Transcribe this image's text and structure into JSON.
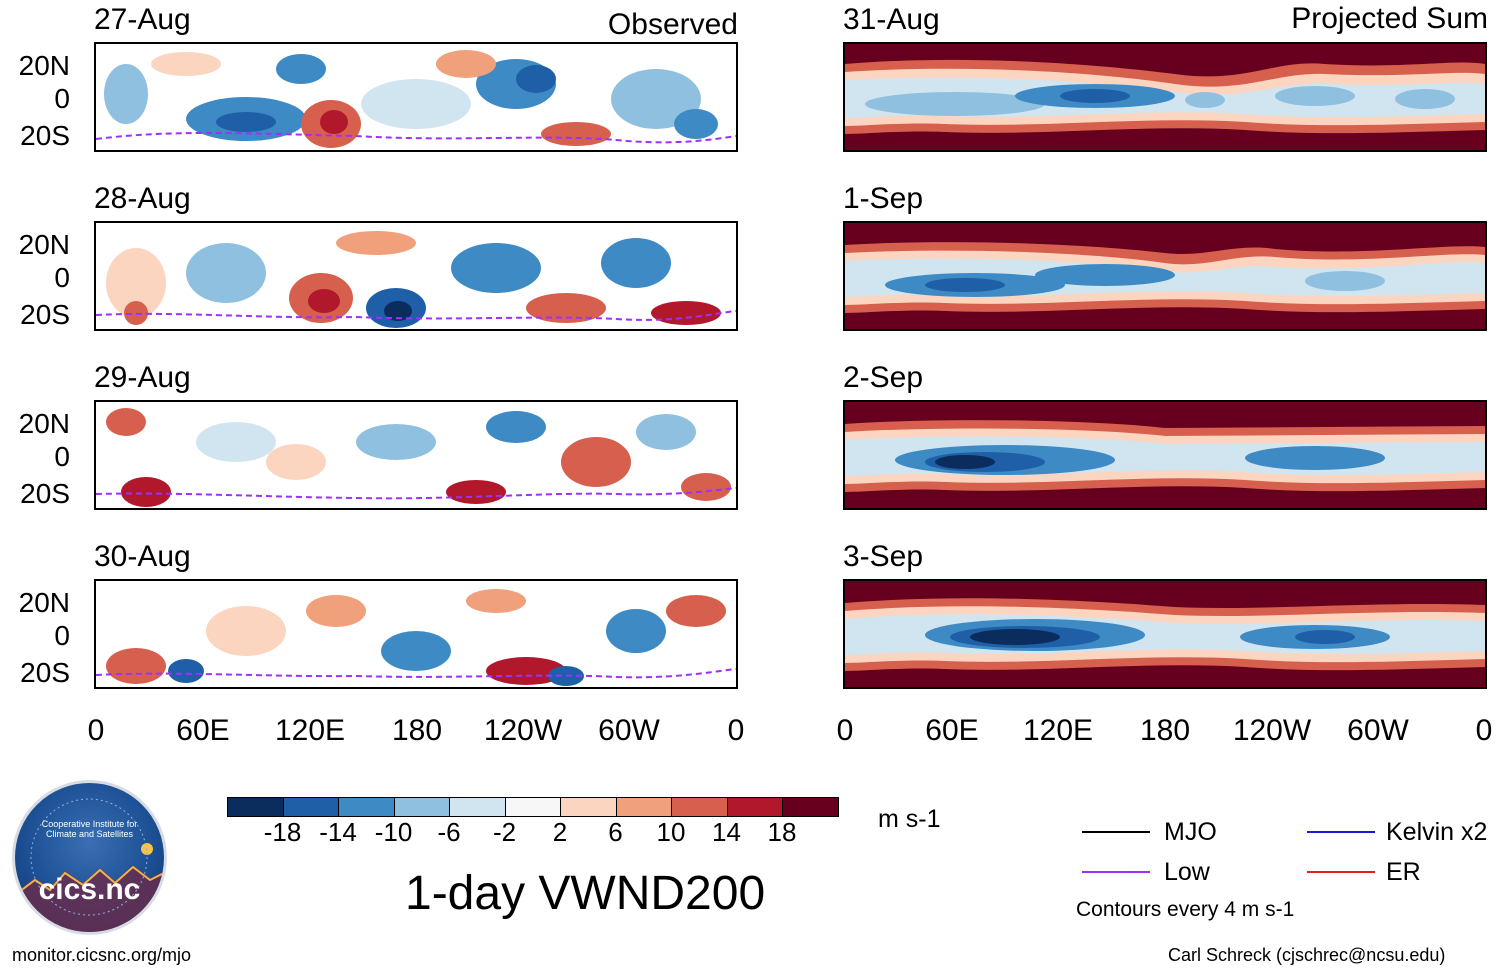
{
  "title": "1-day VWND200",
  "units": "m s-1",
  "left_column_label": "Observed",
  "right_column_label": "Projected Sum",
  "observed_dates": [
    "27-Aug",
    "28-Aug",
    "29-Aug",
    "30-Aug"
  ],
  "projected_dates": [
    "31-Aug",
    "1-Sep",
    "2-Sep",
    "3-Sep"
  ],
  "lat_ticks": [
    "20N",
    "0",
    "20S"
  ],
  "lon_ticks": [
    "0",
    "60E",
    "120E",
    "180",
    "120W",
    "60W",
    "0"
  ],
  "colorbar": {
    "ticks": [
      "-18",
      "-14",
      "-10",
      "-6",
      "-2",
      "2",
      "6",
      "10",
      "14",
      "18"
    ],
    "colors": [
      "#0a2d5e",
      "#1f5fa8",
      "#3e8ac4",
      "#8fc0e0",
      "#d1e5f1",
      "#f7f7f7",
      "#fbd5c0",
      "#f0a07a",
      "#d6604d",
      "#b2182b",
      "#67001f"
    ]
  },
  "legend": {
    "items": [
      {
        "label": "MJO",
        "color": "#000000"
      },
      {
        "label": "Kelvin x2",
        "color": "#1a1ad6"
      },
      {
        "label": "Low",
        "color": "#9b30ff"
      },
      {
        "label": "ER",
        "color": "#e0201f"
      }
    ],
    "note": "Contours every 4 m s-1"
  },
  "logo": {
    "ring_text": "Cooperative Institute for Climate and Satellites",
    "name": "cics.nc"
  },
  "footer": {
    "left": "monitor.cicsnc.org/mjo",
    "right": "Carl Schreck (cjschrec@ncsu.edu)"
  },
  "chart_data": {
    "type": "heatmap",
    "variable": "VWND200 anomaly",
    "ylim": [
      -30,
      30
    ],
    "xlim": [
      0,
      360
    ],
    "projected_bands": [
      {
        "date": "31-Aug",
        "equatorial_min_ms": -14,
        "offequator_max_ms": 18
      },
      {
        "date": "1-Sep",
        "equatorial_min_ms": -14,
        "offequator_max_ms": 18
      },
      {
        "date": "2-Sep",
        "equatorial_min_ms": -18,
        "offequator_max_ms": 18
      },
      {
        "date": "3-Sep",
        "equatorial_min_ms": -18,
        "offequator_max_ms": 18
      }
    ]
  }
}
